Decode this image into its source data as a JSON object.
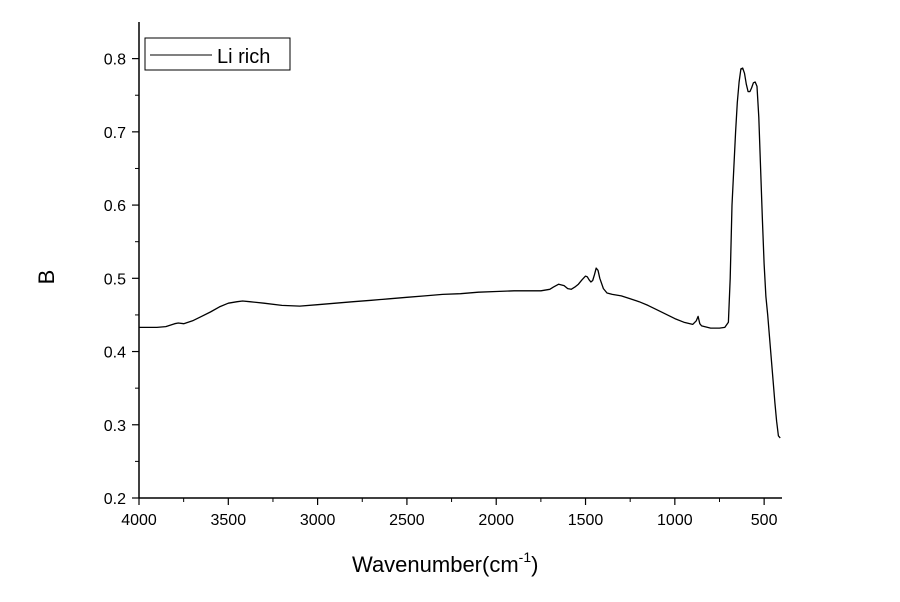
{
  "chart_data": {
    "type": "line",
    "xlabel": "Wavenumber(cm",
    "xlabel_superscript": "-1",
    "xlabel_suffix": ")",
    "ylabel": "B",
    "xlim": [
      4000,
      400
    ],
    "ylim": [
      0.2,
      0.85
    ],
    "x_ticks": [
      4000,
      3500,
      3000,
      2500,
      2000,
      1500,
      1000,
      500
    ],
    "y_ticks": [
      0.2,
      0.3,
      0.4,
      0.5,
      0.6,
      0.7,
      0.8
    ],
    "x_tick_labels": [
      "4000",
      "3500",
      "3000",
      "2500",
      "2000",
      "1500",
      "1000",
      "500"
    ],
    "y_tick_labels": [
      "0.2",
      "0.3",
      "0.4",
      "0.5",
      "0.6",
      "0.7",
      "0.8"
    ],
    "grid": false,
    "legend_position": "top-left",
    "series": [
      {
        "name": "Li rich",
        "color": "#000000",
        "x": [
          4000,
          3900,
          3850,
          3800,
          3780,
          3750,
          3700,
          3650,
          3600,
          3550,
          3500,
          3450,
          3420,
          3380,
          3300,
          3200,
          3100,
          3000,
          2900,
          2800,
          2700,
          2600,
          2500,
          2400,
          2300,
          2200,
          2100,
          2000,
          1900,
          1800,
          1750,
          1700,
          1680,
          1650,
          1620,
          1600,
          1580,
          1560,
          1540,
          1520,
          1500,
          1490,
          1480,
          1470,
          1460,
          1450,
          1440,
          1430,
          1420,
          1400,
          1380,
          1350,
          1300,
          1250,
          1200,
          1150,
          1100,
          1050,
          1000,
          950,
          900,
          880,
          870,
          860,
          850,
          800,
          750,
          720,
          700,
          690,
          680,
          660,
          650,
          640,
          630,
          620,
          610,
          600,
          590,
          580,
          570,
          560,
          550,
          540,
          530,
          520,
          510,
          500,
          490,
          480,
          470,
          460,
          450,
          440,
          430,
          420,
          410
        ],
        "y": [
          0.433,
          0.433,
          0.434,
          0.438,
          0.439,
          0.438,
          0.442,
          0.448,
          0.454,
          0.461,
          0.466,
          0.468,
          0.469,
          0.468,
          0.466,
          0.463,
          0.462,
          0.464,
          0.466,
          0.468,
          0.47,
          0.472,
          0.474,
          0.476,
          0.478,
          0.479,
          0.481,
          0.482,
          0.483,
          0.483,
          0.483,
          0.485,
          0.488,
          0.492,
          0.49,
          0.486,
          0.485,
          0.488,
          0.492,
          0.498,
          0.503,
          0.502,
          0.498,
          0.495,
          0.497,
          0.505,
          0.514,
          0.511,
          0.5,
          0.486,
          0.48,
          0.478,
          0.476,
          0.472,
          0.468,
          0.463,
          0.457,
          0.451,
          0.445,
          0.44,
          0.437,
          0.442,
          0.448,
          0.438,
          0.435,
          0.432,
          0.432,
          0.433,
          0.44,
          0.5,
          0.6,
          0.7,
          0.74,
          0.768,
          0.786,
          0.787,
          0.78,
          0.765,
          0.755,
          0.755,
          0.76,
          0.767,
          0.768,
          0.762,
          0.72,
          0.65,
          0.58,
          0.52,
          0.475,
          0.45,
          0.42,
          0.39,
          0.36,
          0.33,
          0.305,
          0.285,
          0.282
        ]
      }
    ]
  }
}
